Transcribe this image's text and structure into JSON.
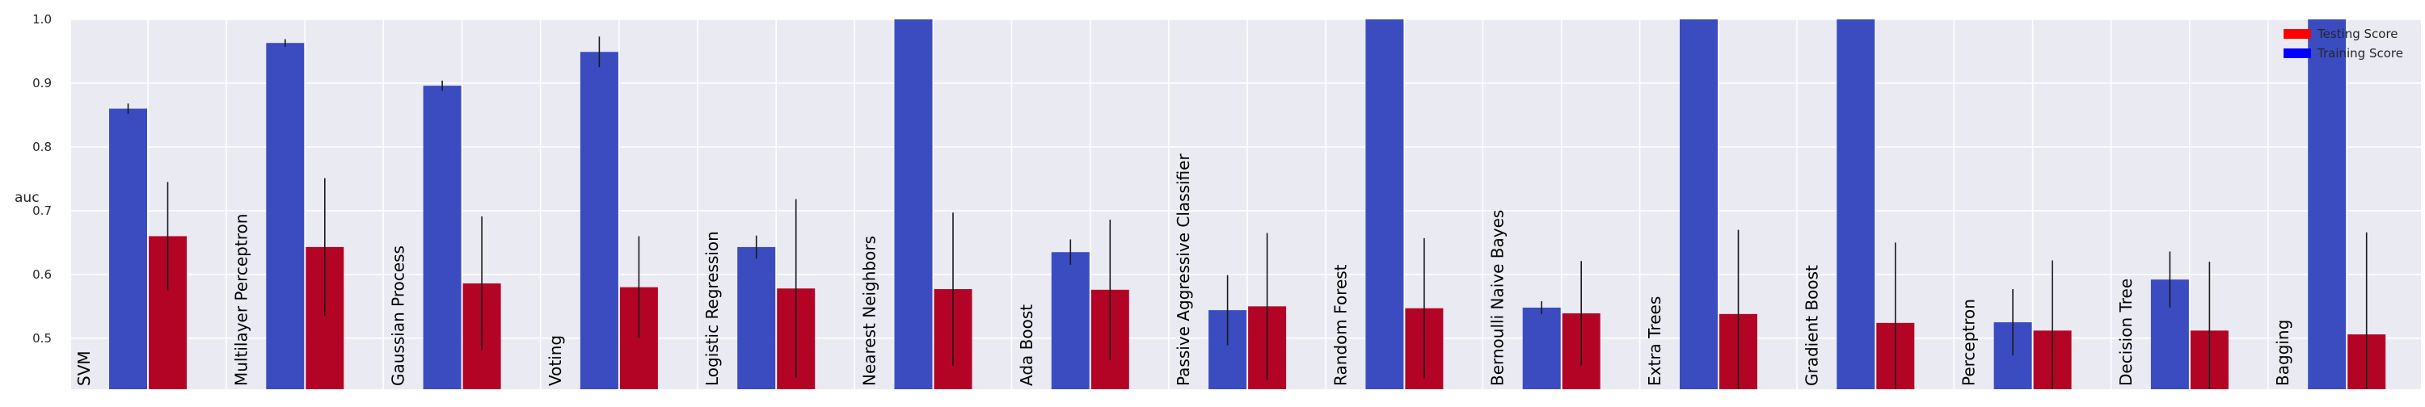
{
  "chart_data": {
    "type": "bar",
    "ylabel": "auc",
    "ylim": [
      0.42,
      1.0
    ],
    "yticks": [
      "0.5",
      "0.6",
      "0.7",
      "0.8",
      "0.9",
      "1.0"
    ],
    "grid": true,
    "legend_position": "top-right",
    "categories": [
      "SVM",
      "Multilayer Perceptron",
      "Gaussian Process",
      "Voting",
      "Logistic Regression",
      "Nearest Neighbors",
      "Ada Boost",
      "Passive Aggressive Classifier",
      "Random Forest",
      "Bernoulli Naive Bayes",
      "Extra Trees",
      "Gradient Boost",
      "Perceptron",
      "Decision Tree",
      "Bagging"
    ],
    "series": [
      {
        "name": "Training Score",
        "color": "#3b4cc0",
        "values": [
          0.86,
          0.963,
          0.896,
          0.949,
          0.643,
          1.0,
          0.635,
          0.544,
          1.0,
          0.548,
          1.0,
          1.0,
          0.525,
          0.592,
          1.0
        ],
        "errors": [
          0.008,
          0.006,
          0.008,
          0.024,
          0.018,
          0.0,
          0.02,
          0.055,
          0.0,
          0.01,
          0.0,
          0.0,
          0.052,
          0.044,
          0.0
        ]
      },
      {
        "name": "Testing Score",
        "color": "#b40426",
        "values": [
          0.66,
          0.643,
          0.586,
          0.58,
          0.578,
          0.577,
          0.576,
          0.55,
          0.547,
          0.539,
          0.538,
          0.524,
          0.512,
          0.512,
          0.506
        ],
        "errors": [
          0.085,
          0.108,
          0.105,
          0.08,
          0.14,
          0.12,
          0.11,
          0.115,
          0.11,
          0.082,
          0.132,
          0.126,
          0.11,
          0.108,
          0.16
        ]
      }
    ],
    "legend": [
      "Testing Score",
      "Training Score"
    ]
  }
}
